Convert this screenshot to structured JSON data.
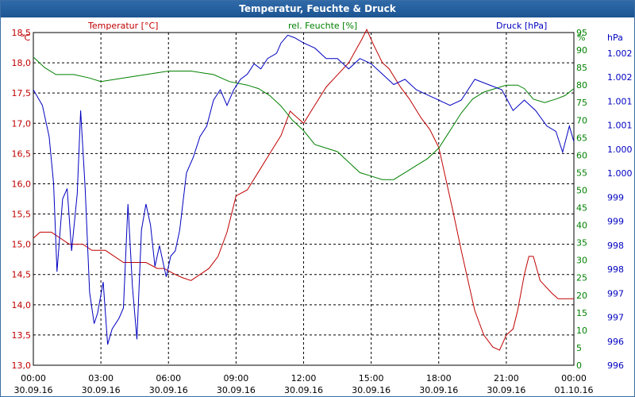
{
  "title": "Temperatur, Feuchte & Druck",
  "colors": {
    "temperature": "#c00000",
    "humidity": "#008000",
    "pressure": "#0000c0",
    "grid": "#000000",
    "titlebar": "#1f5a99"
  },
  "chart_data": {
    "type": "line",
    "x_tick_labels": [
      [
        "00:00",
        "30.09.16"
      ],
      [
        "03:00",
        "30.09.16"
      ],
      [
        "06:00",
        "30.09.16"
      ],
      [
        "09:00",
        "30.09.16"
      ],
      [
        "12:00",
        "30.09.16"
      ],
      [
        "15:00",
        "30.09.16"
      ],
      [
        "18:00",
        "30.09.16"
      ],
      [
        "21:00",
        "30.09.16"
      ],
      [
        "00:00",
        "01.10.16"
      ]
    ],
    "xlim": [
      0,
      24
    ],
    "grid": true,
    "axes": {
      "temperature": {
        "label": "Temperatur [°C]",
        "unit": "°C",
        "min": 13.0,
        "max": 18.5,
        "ticks": [
          "13,0",
          "13,5",
          "14,0",
          "14,5",
          "15,0",
          "15,5",
          "16,0",
          "16,5",
          "17,0",
          "17,5",
          "18,0",
          "18,5"
        ]
      },
      "humidity": {
        "label": "rel. Feuchte [%]",
        "unit": "%",
        "min": 0,
        "max": 95,
        "ticks": [
          "0",
          "5",
          "10",
          "15",
          "20",
          "25",
          "30",
          "35",
          "40",
          "45",
          "50",
          "55",
          "60",
          "65",
          "70",
          "75",
          "80",
          "85",
          "90",
          "95"
        ]
      },
      "pressure": {
        "label": "Druck [hPa]",
        "unit": "hPa",
        "min": 996,
        "max": 1002.4,
        "ticks": [
          "996",
          "996",
          "997",
          "997",
          "998",
          "998",
          "999",
          "999",
          "1.000",
          "1.000",
          "1.001",
          "1.001",
          "1.002",
          "1.002"
        ]
      }
    },
    "series": [
      {
        "name": "Temperatur [°C]",
        "axis": "temperature",
        "points": [
          [
            0,
            15.1
          ],
          [
            0.3,
            15.2
          ],
          [
            0.8,
            15.2
          ],
          [
            1.2,
            15.1
          ],
          [
            1.6,
            15.0
          ],
          [
            2.2,
            15.0
          ],
          [
            2.6,
            14.9
          ],
          [
            3.2,
            14.9
          ],
          [
            3.6,
            14.8
          ],
          [
            4.0,
            14.7
          ],
          [
            5.0,
            14.7
          ],
          [
            5.5,
            14.6
          ],
          [
            5.8,
            14.6
          ],
          [
            6.3,
            14.5
          ],
          [
            6.6,
            14.45
          ],
          [
            7.0,
            14.4
          ],
          [
            7.4,
            14.5
          ],
          [
            7.8,
            14.6
          ],
          [
            8.2,
            14.8
          ],
          [
            8.6,
            15.2
          ],
          [
            9.0,
            15.8
          ],
          [
            9.5,
            15.9
          ],
          [
            10.0,
            16.2
          ],
          [
            10.5,
            16.5
          ],
          [
            11.0,
            16.8
          ],
          [
            11.4,
            17.2
          ],
          [
            11.7,
            17.1
          ],
          [
            12.0,
            17.0
          ],
          [
            12.5,
            17.3
          ],
          [
            13.0,
            17.6
          ],
          [
            13.5,
            17.8
          ],
          [
            14.0,
            18.0
          ],
          [
            14.3,
            18.2
          ],
          [
            14.6,
            18.4
          ],
          [
            14.8,
            18.55
          ],
          [
            15.1,
            18.3
          ],
          [
            15.5,
            18.0
          ],
          [
            15.8,
            17.9
          ],
          [
            16.3,
            17.6
          ],
          [
            16.7,
            17.4
          ],
          [
            17.2,
            17.1
          ],
          [
            17.6,
            16.9
          ],
          [
            18.0,
            16.6
          ],
          [
            18.3,
            16.1
          ],
          [
            18.6,
            15.6
          ],
          [
            19.0,
            14.9
          ],
          [
            19.3,
            14.4
          ],
          [
            19.6,
            13.9
          ],
          [
            20.0,
            13.5
          ],
          [
            20.4,
            13.3
          ],
          [
            20.7,
            13.25
          ],
          [
            21.0,
            13.5
          ],
          [
            21.3,
            13.6
          ],
          [
            21.5,
            13.9
          ],
          [
            21.8,
            14.5
          ],
          [
            22.0,
            14.8
          ],
          [
            22.2,
            14.8
          ],
          [
            22.5,
            14.4
          ],
          [
            23.0,
            14.2
          ],
          [
            23.3,
            14.1
          ],
          [
            23.8,
            14.1
          ],
          [
            24.0,
            14.1
          ]
        ]
      },
      {
        "name": "rel. Feuchte [%]",
        "axis": "humidity",
        "points": [
          [
            0,
            88
          ],
          [
            0.5,
            85
          ],
          [
            1.0,
            83
          ],
          [
            1.8,
            83
          ],
          [
            2.5,
            82
          ],
          [
            3.0,
            81
          ],
          [
            4.0,
            82
          ],
          [
            5.0,
            83
          ],
          [
            6.0,
            84
          ],
          [
            7.0,
            84
          ],
          [
            8.0,
            83
          ],
          [
            8.7,
            81
          ],
          [
            9.5,
            80
          ],
          [
            10.0,
            79
          ],
          [
            10.5,
            77
          ],
          [
            11.0,
            74
          ],
          [
            11.5,
            70
          ],
          [
            12.0,
            67
          ],
          [
            12.5,
            63
          ],
          [
            13.0,
            62
          ],
          [
            13.5,
            61
          ],
          [
            14.0,
            58
          ],
          [
            14.5,
            55
          ],
          [
            15.0,
            54
          ],
          [
            15.5,
            53
          ],
          [
            16.0,
            53
          ],
          [
            16.5,
            55
          ],
          [
            17.0,
            57
          ],
          [
            17.5,
            59
          ],
          [
            18.0,
            62
          ],
          [
            18.3,
            65
          ],
          [
            18.6,
            68
          ],
          [
            19.0,
            72
          ],
          [
            19.5,
            76
          ],
          [
            20.0,
            78
          ],
          [
            20.5,
            79
          ],
          [
            21.0,
            80
          ],
          [
            21.5,
            80
          ],
          [
            21.8,
            79
          ],
          [
            22.2,
            76
          ],
          [
            22.7,
            75
          ],
          [
            23.2,
            76
          ],
          [
            23.6,
            77
          ],
          [
            24.0,
            79
          ]
        ]
      },
      {
        "name": "Druck [hPa]",
        "axis": "pressure",
        "points": [
          [
            0,
            1001.3
          ],
          [
            0.4,
            1001.0
          ],
          [
            0.7,
            1000.4
          ],
          [
            0.9,
            999.5
          ],
          [
            1.05,
            997.8
          ],
          [
            1.3,
            999.2
          ],
          [
            1.5,
            999.4
          ],
          [
            1.7,
            998.2
          ],
          [
            1.95,
            999.3
          ],
          [
            2.1,
            1000.9
          ],
          [
            2.3,
            999.4
          ],
          [
            2.5,
            997.4
          ],
          [
            2.7,
            996.8
          ],
          [
            2.85,
            997.0
          ],
          [
            3.1,
            997.6
          ],
          [
            3.3,
            996.4
          ],
          [
            3.5,
            996.7
          ],
          [
            3.8,
            996.9
          ],
          [
            4.0,
            997.1
          ],
          [
            4.2,
            999.1
          ],
          [
            4.4,
            997.5
          ],
          [
            4.6,
            996.5
          ],
          [
            4.8,
            998.6
          ],
          [
            5.0,
            999.1
          ],
          [
            5.2,
            998.7
          ],
          [
            5.4,
            997.9
          ],
          [
            5.6,
            998.3
          ],
          [
            5.9,
            997.7
          ],
          [
            6.1,
            998.1
          ],
          [
            6.3,
            998.2
          ],
          [
            6.5,
            998.6
          ],
          [
            6.8,
            999.7
          ],
          [
            7.1,
            1000.0
          ],
          [
            7.4,
            1000.4
          ],
          [
            7.7,
            1000.6
          ],
          [
            8.0,
            1001.1
          ],
          [
            8.3,
            1001.3
          ],
          [
            8.6,
            1001.0
          ],
          [
            8.9,
            1001.3
          ],
          [
            9.2,
            1001.5
          ],
          [
            9.5,
            1001.6
          ],
          [
            9.8,
            1001.8
          ],
          [
            10.1,
            1001.7
          ],
          [
            10.4,
            1001.9
          ],
          [
            10.8,
            1002.0
          ],
          [
            11.0,
            1002.2
          ],
          [
            11.3,
            1002.35
          ],
          [
            11.6,
            1002.3
          ],
          [
            12.0,
            1002.2
          ],
          [
            12.5,
            1002.1
          ],
          [
            13.0,
            1001.9
          ],
          [
            13.5,
            1001.9
          ],
          [
            14.0,
            1001.7
          ],
          [
            14.5,
            1001.9
          ],
          [
            15.0,
            1001.8
          ],
          [
            15.5,
            1001.6
          ],
          [
            16.0,
            1001.4
          ],
          [
            16.5,
            1001.5
          ],
          [
            17.0,
            1001.3
          ],
          [
            17.5,
            1001.2
          ],
          [
            18.0,
            1001.1
          ],
          [
            18.5,
            1001.0
          ],
          [
            19.0,
            1001.1
          ],
          [
            19.6,
            1001.5
          ],
          [
            20.2,
            1001.4
          ],
          [
            20.8,
            1001.3
          ],
          [
            21.3,
            1000.9
          ],
          [
            21.8,
            1001.1
          ],
          [
            22.3,
            1000.9
          ],
          [
            22.8,
            1000.6
          ],
          [
            23.2,
            1000.5
          ],
          [
            23.5,
            1000.1
          ],
          [
            23.8,
            1000.6
          ],
          [
            24.0,
            1000.3
          ]
        ]
      }
    ]
  }
}
